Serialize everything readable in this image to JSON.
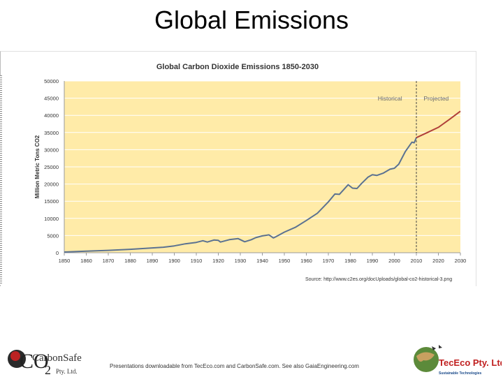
{
  "slide": {
    "title": "Global Emissions",
    "source": "Source: http://www.c2es.org/docUploads/global-co2-historical-3.png",
    "footer": "Presentations downloadable from TecEco.com and CarbonSafe.com. See also GaiaEngineering.com"
  },
  "logos": {
    "left": {
      "co2_text": "CO",
      "subscript": "2",
      "brand": "CarbonSafe",
      "suffix": "Pty. Ltd."
    },
    "right": {
      "brand": "TecEco Pty. Ltd.",
      "tagline": "Sustainable Technologies"
    }
  },
  "colors": {
    "plot_background": "#FFEBA8",
    "historical_line": "#5B7291",
    "projected_line": "#B0403A",
    "gridline": "#ffffff"
  },
  "chart_data": {
    "type": "line",
    "title": "Global Carbon Dioxide Emissions 1850-2030",
    "ylabel": "Million Metric Tons CO2",
    "xlabel": "",
    "xlim": [
      1850,
      2030
    ],
    "ylim": [
      0,
      50000
    ],
    "x_ticks": [
      1850,
      1860,
      1870,
      1880,
      1890,
      1900,
      1910,
      1920,
      1930,
      1940,
      1950,
      1960,
      1970,
      1980,
      1990,
      2000,
      2010,
      2020,
      2030
    ],
    "y_ticks": [
      0,
      5000,
      10000,
      15000,
      20000,
      25000,
      30000,
      35000,
      40000,
      45000,
      50000
    ],
    "grid": true,
    "annotations": [
      {
        "text": "Historical",
        "x": 1998
      },
      {
        "text": "Projected",
        "x": 2019
      }
    ],
    "divider_year": 2010,
    "series": [
      {
        "name": "Historical",
        "x": [
          1850,
          1860,
          1870,
          1880,
          1890,
          1895,
          1900,
          1905,
          1910,
          1913,
          1915,
          1918,
          1920,
          1921,
          1925,
          1929,
          1932,
          1935,
          1937,
          1940,
          1943,
          1945,
          1946,
          1950,
          1955,
          1960,
          1965,
          1970,
          1973,
          1975,
          1979,
          1981,
          1983,
          1985,
          1988,
          1990,
          1992,
          1995,
          1998,
          2000,
          2002,
          2005,
          2008,
          2009,
          2010
        ],
        "values": [
          200,
          450,
          700,
          1000,
          1400,
          1600,
          2000,
          2600,
          3000,
          3500,
          3100,
          3700,
          3600,
          3100,
          3800,
          4100,
          3200,
          3800,
          4400,
          4900,
          5200,
          4300,
          4600,
          6000,
          7400,
          9400,
          11500,
          14800,
          17100,
          17000,
          19800,
          18800,
          18700,
          20100,
          22000,
          22700,
          22500,
          23200,
          24300,
          24600,
          25800,
          29500,
          32200,
          32000,
          33500
        ]
      },
      {
        "name": "Projected",
        "x": [
          2010,
          2015,
          2020,
          2025,
          2030
        ],
        "values": [
          33500,
          35000,
          36500,
          38800,
          41200
        ]
      }
    ]
  }
}
